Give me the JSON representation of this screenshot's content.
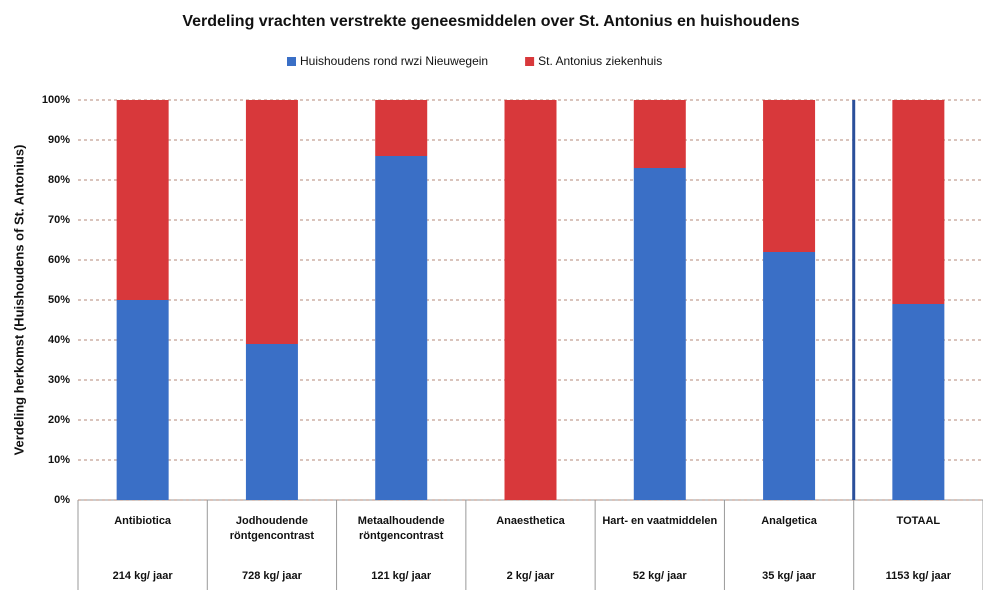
{
  "chart_data": {
    "type": "stacked_bar",
    "title": "Verdeling vrachten verstrekte geneesmiddelen over St. Antonius en huishoudens",
    "y_label": "Verdeling herkomst (Huishoudens of St. Antonius)",
    "categories": [
      "Antibiotica",
      "Jodhoudende\nröntgencontrast",
      "Metaalhoudende\nröntgencontrast",
      "Anaesthetica",
      "Hart- en vaatmiddelen",
      "Analgetica",
      "TOTAAL"
    ],
    "sublabels": [
      "214 kg/ jaar",
      "728 kg/ jaar",
      "121 kg/ jaar",
      "2 kg/ jaar",
      "52 kg/ jaar",
      "35 kg/ jaar",
      "1153 kg/ jaar"
    ],
    "series": [
      {
        "name": "Huishoudens rond rwzi Nieuwegein",
        "color": "#3a6fc6",
        "values": [
          50,
          39,
          86,
          0,
          83,
          62,
          49
        ]
      },
      {
        "name": "St. Antonius ziekenhuis",
        "color": "#d8383b",
        "values": [
          50,
          61,
          14,
          100,
          17,
          38,
          51
        ]
      }
    ],
    "ylim": [
      0,
      100
    ],
    "yticks": [
      {
        "value": 0,
        "label": "0%"
      },
      {
        "value": 10,
        "label": "10%"
      },
      {
        "value": 20,
        "label": "20%"
      },
      {
        "value": 30,
        "label": "30%"
      },
      {
        "value": 40,
        "label": "40%"
      },
      {
        "value": 50,
        "label": "50%"
      },
      {
        "value": 60,
        "label": "60%"
      },
      {
        "value": 70,
        "label": "70%"
      },
      {
        "value": 80,
        "label": "80%"
      },
      {
        "value": 90,
        "label": "90%"
      },
      {
        "value": 100,
        "label": "100%"
      }
    ],
    "grid": true,
    "legend": "top"
  }
}
